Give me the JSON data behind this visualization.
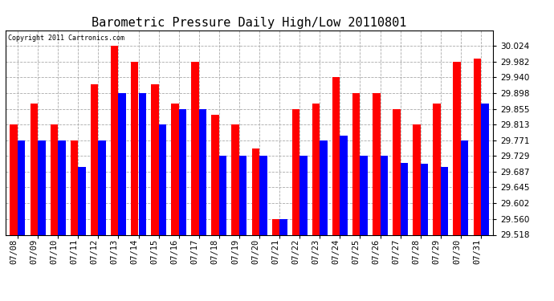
{
  "title": "Barometric Pressure Daily High/Low 20110801",
  "copyright_text": "Copyright 2011 Cartronics.com",
  "dates": [
    "07/08",
    "07/09",
    "07/10",
    "07/11",
    "07/12",
    "07/13",
    "07/14",
    "07/15",
    "07/16",
    "07/17",
    "07/18",
    "07/19",
    "07/20",
    "07/21",
    "07/22",
    "07/23",
    "07/24",
    "07/25",
    "07/26",
    "07/27",
    "07/28",
    "07/29",
    "07/30",
    "07/31"
  ],
  "highs": [
    29.813,
    29.87,
    29.813,
    29.771,
    29.92,
    30.024,
    29.982,
    29.92,
    29.87,
    29.982,
    29.84,
    29.813,
    29.75,
    29.56,
    29.855,
    29.87,
    29.94,
    29.898,
    29.898,
    29.855,
    29.813,
    29.87,
    29.982,
    29.99
  ],
  "lows": [
    29.771,
    29.771,
    29.771,
    29.7,
    29.771,
    29.898,
    29.898,
    29.813,
    29.855,
    29.855,
    29.729,
    29.729,
    29.729,
    29.56,
    29.729,
    29.771,
    29.783,
    29.729,
    29.729,
    29.71,
    29.708,
    29.7,
    29.771,
    29.87
  ],
  "high_color": "#ff0000",
  "low_color": "#0000ff",
  "background_color": "#ffffff",
  "grid_color": "#aaaaaa",
  "ylim_min": 29.518,
  "ylim_max": 30.066,
  "yticks": [
    29.518,
    29.56,
    29.602,
    29.645,
    29.687,
    29.729,
    29.771,
    29.813,
    29.855,
    29.898,
    29.94,
    29.982,
    30.024
  ],
  "title_fontsize": 11,
  "tick_fontsize": 7.5,
  "copyright_fontsize": 6,
  "bar_width": 0.38,
  "baseline": 29.518
}
